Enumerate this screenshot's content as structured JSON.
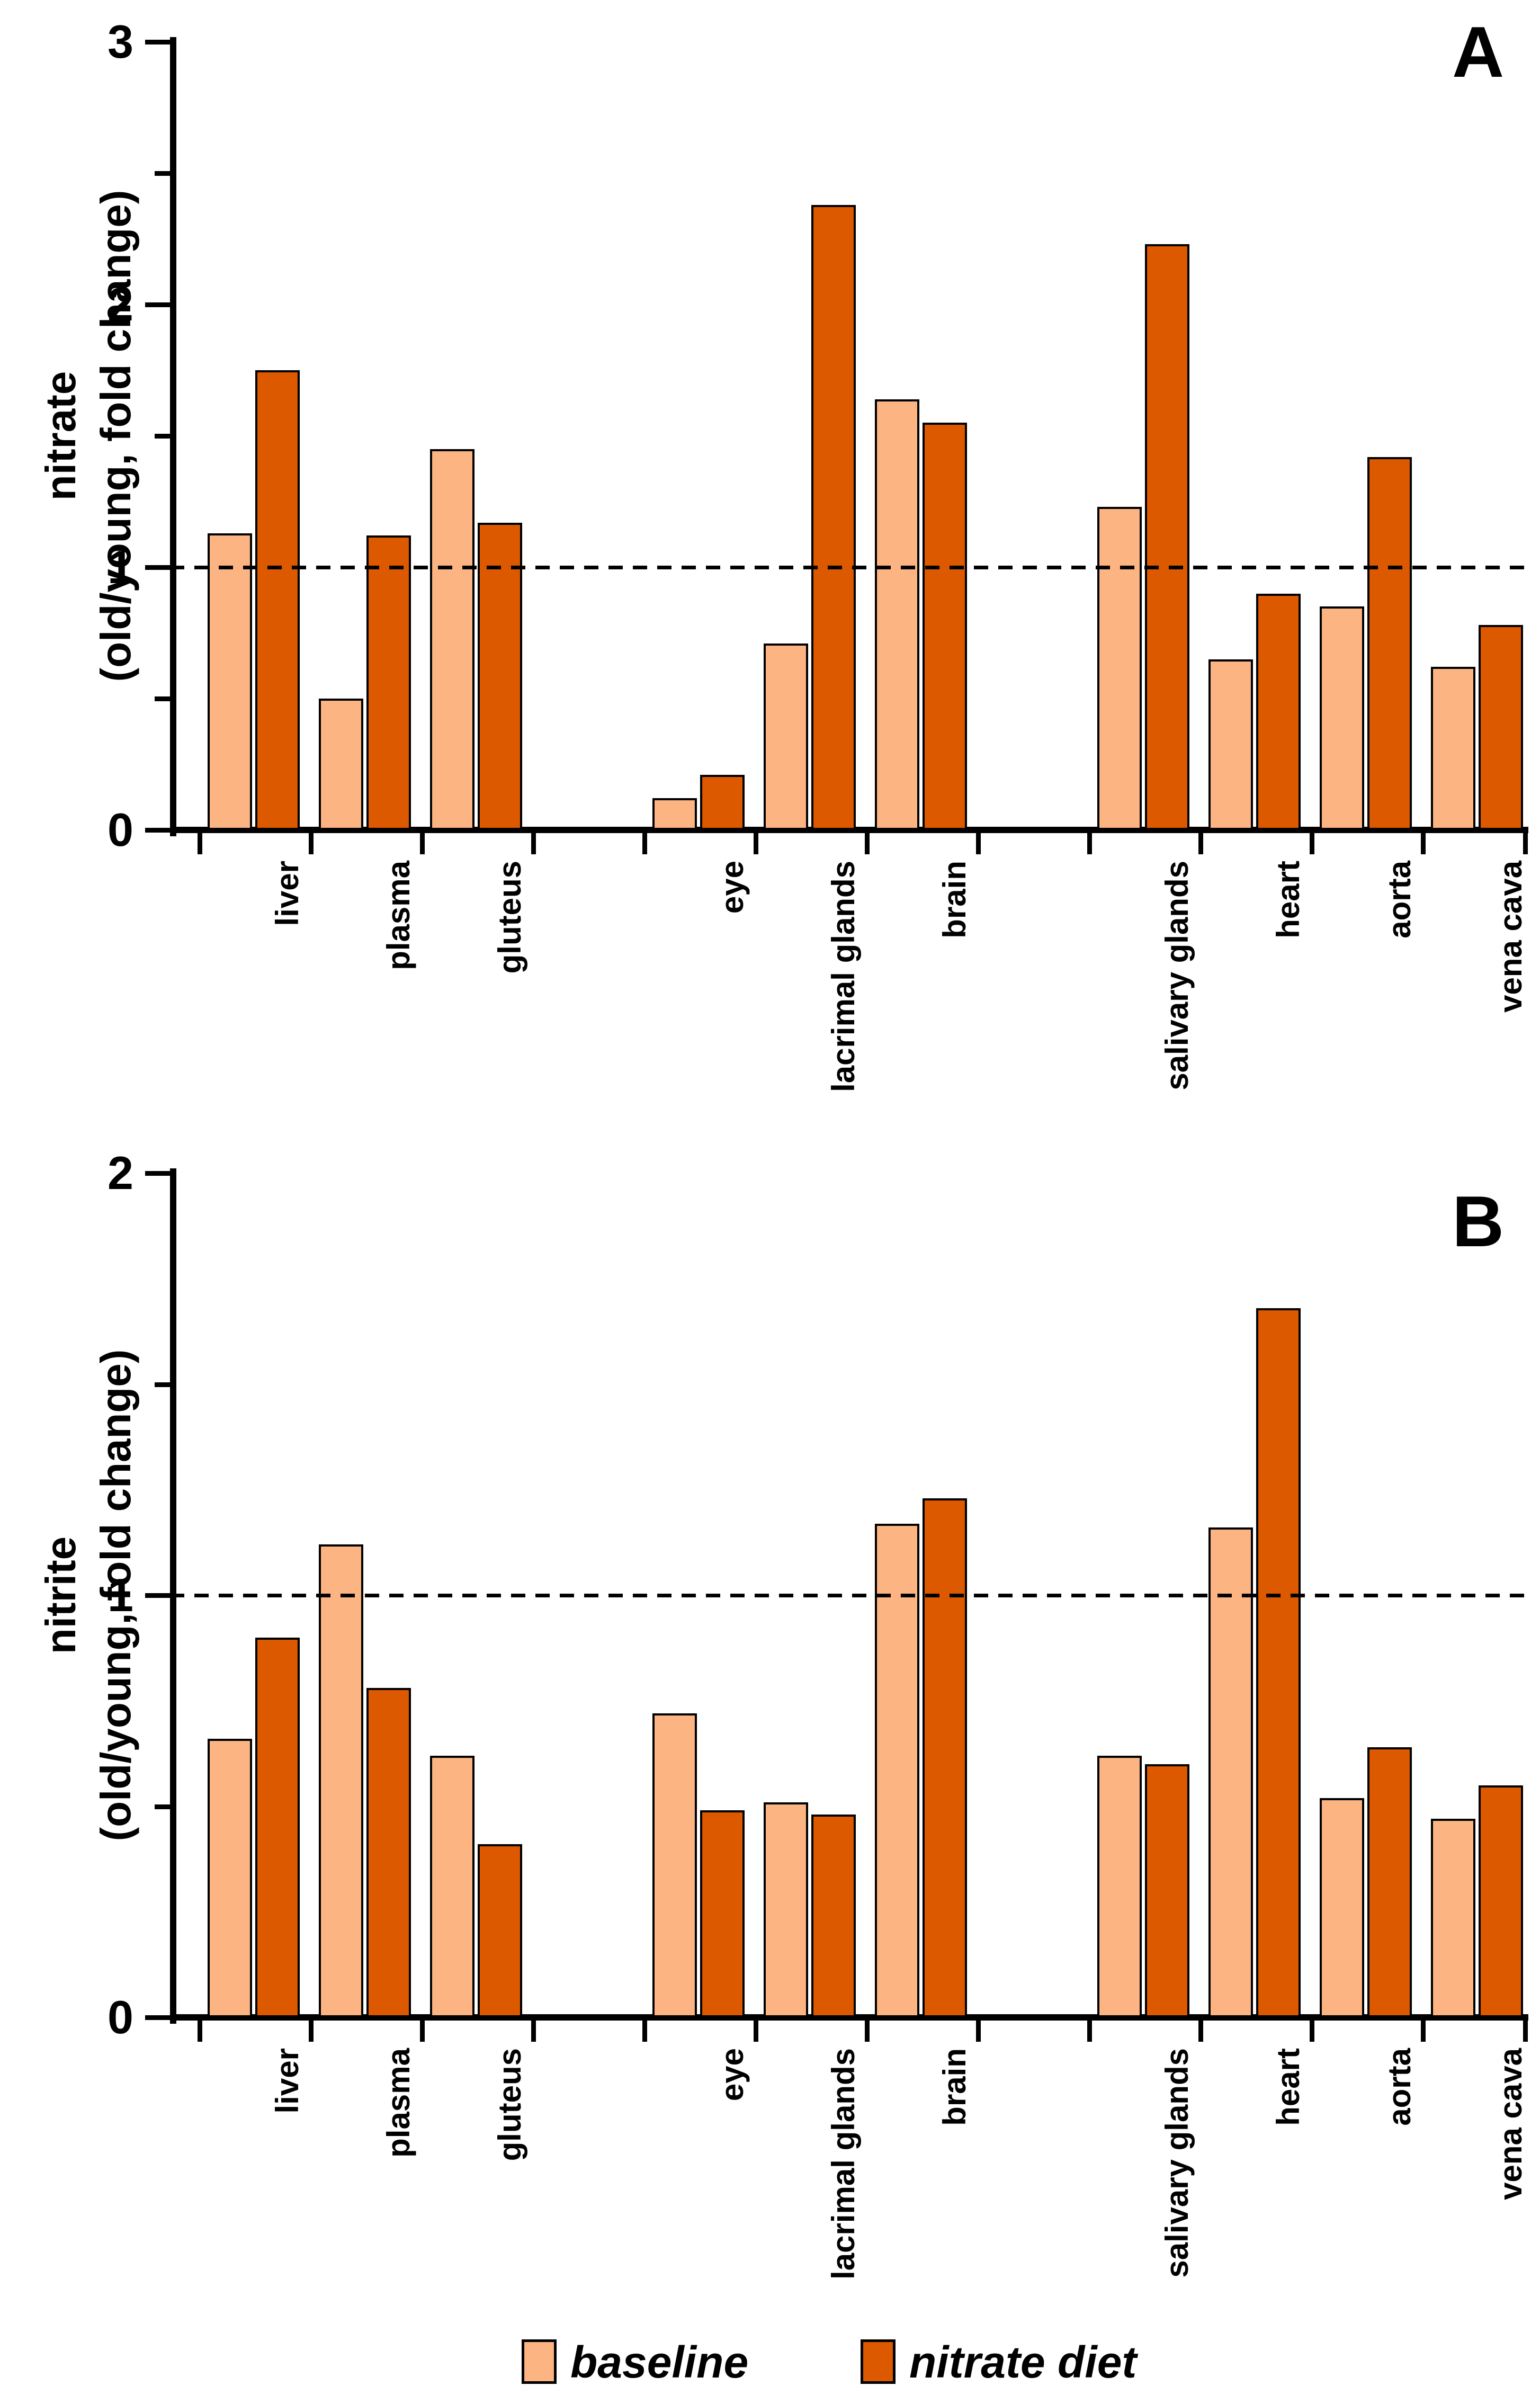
{
  "figure": {
    "panel_a_letter": "A",
    "panel_b_letter": "B",
    "colors": {
      "baseline_fill": "#FDB483",
      "nitrate_fill": "#DD5900",
      "outline": "#000000"
    },
    "legend": [
      {
        "label": "baseline",
        "color": "#FDB483"
      },
      {
        "label": "nitrate diet",
        "color": "#DD5900"
      }
    ]
  },
  "chart_data": [
    {
      "type": "bar",
      "panel": "A",
      "title": "",
      "ylabel_line1": "nitrate",
      "ylabel_line2": "(old/young, fold change)",
      "xlabel": "",
      "ylim": [
        0,
        3
      ],
      "ytick_labels": [
        "0",
        "1",
        "2",
        "3"
      ],
      "minor_yticks": [
        0.5,
        1.5,
        2.5
      ],
      "reference_line": 1.0,
      "grid": false,
      "legend_position": "bottom",
      "categories": [
        "liver",
        "plasma",
        "gluteus",
        "eye",
        "lacrimal glands",
        "brain",
        "salivary glands",
        "heart",
        "aorta",
        "vena cava"
      ],
      "series": [
        {
          "name": "baseline",
          "values": [
            1.13,
            0.5,
            1.45,
            0.12,
            0.71,
            1.64,
            1.23,
            0.65,
            0.85,
            0.62
          ]
        },
        {
          "name": "nitrate diet",
          "values": [
            1.75,
            1.12,
            1.17,
            0.21,
            2.38,
            1.55,
            2.23,
            0.9,
            1.42,
            0.78
          ]
        }
      ]
    },
    {
      "type": "bar",
      "panel": "B",
      "title": "",
      "ylabel_line1": "nitrite",
      "ylabel_line2": "(old/young, fold change)",
      "xlabel": "",
      "ylim": [
        0,
        2
      ],
      "ytick_labels": [
        "0",
        "1",
        "2"
      ],
      "minor_yticks": [
        0.5,
        1.5
      ],
      "reference_line": 1.0,
      "grid": false,
      "legend_position": "bottom",
      "categories": [
        "liver",
        "plasma",
        "gluteus",
        "eye",
        "lacrimal glands",
        "brain",
        "salivary glands",
        "heart",
        "aorta",
        "vena cava"
      ],
      "series": [
        {
          "name": "baseline",
          "values": [
            0.66,
            1.12,
            0.62,
            0.72,
            0.51,
            1.17,
            0.62,
            1.16,
            0.52,
            0.47
          ]
        },
        {
          "name": "nitrate diet",
          "values": [
            0.9,
            0.78,
            0.41,
            0.49,
            0.48,
            1.23,
            0.6,
            1.68,
            0.64,
            0.55
          ]
        }
      ]
    }
  ]
}
